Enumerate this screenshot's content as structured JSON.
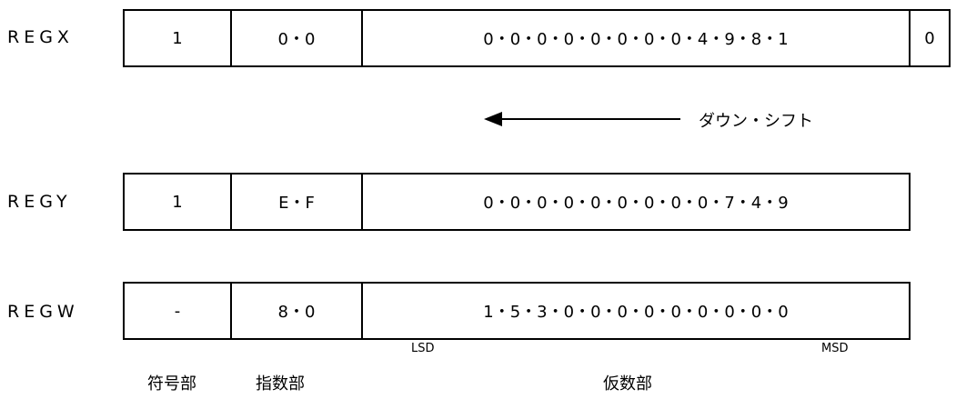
{
  "registers": {
    "regx": {
      "name": "REGX",
      "sign": "1",
      "exponent": "0・0",
      "mantissa": "0・0・0・0・0・0・0・0・4・9・8・1",
      "extra": "0"
    },
    "regy": {
      "name": "REGY",
      "sign": "1",
      "exponent": "E・F",
      "mantissa": "0・0・0・0・0・0・0・0・0・7・4・9"
    },
    "regw": {
      "name": "REGW",
      "sign": "-",
      "exponent": "8・0",
      "mantissa": "1・5・3・0・0・0・0・0・0・0・0・0"
    }
  },
  "shift": {
    "label": "ダウン・シフト",
    "direction": "left"
  },
  "digit_labels": {
    "lsd": "LSD",
    "msd": "MSD"
  },
  "part_labels": {
    "sign": "符号部",
    "exponent": "指数部",
    "mantissa": "仮数部"
  }
}
